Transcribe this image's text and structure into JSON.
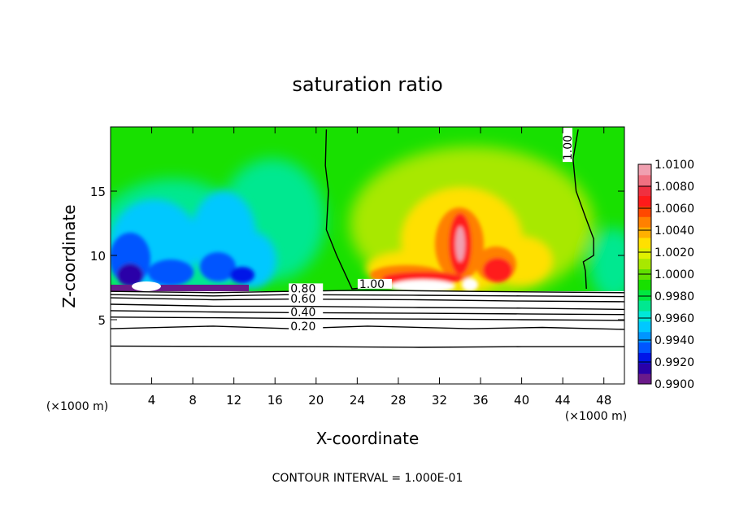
{
  "chart_data": {
    "type": "heatmap",
    "title": "saturation ratio",
    "xlabel": "X-coordinate",
    "ylabel": "Z-coordinate",
    "x_unit_left": "(×1000 m)",
    "x_unit_right": "(×1000 m)",
    "footer": "CONTOUR INTERVAL = 1.000E-01",
    "xlim": [
      0,
      50
    ],
    "ylim": [
      0,
      20
    ],
    "x_ticks": [
      4,
      8,
      12,
      16,
      20,
      24,
      28,
      32,
      36,
      40,
      44,
      48
    ],
    "x_tick_labels": [
      "4",
      "8",
      "12",
      "16",
      "20",
      "24",
      "28",
      "32",
      "36",
      "40",
      "44",
      "48"
    ],
    "y_ticks": [
      5,
      10,
      15
    ],
    "y_tick_labels": [
      "5",
      "10",
      "15"
    ],
    "cloud_base_height": 7.3,
    "colorbar": {
      "min": 0.99,
      "max": 1.01,
      "tick_labels": [
        "1.0100",
        "1.0080",
        "1.0060",
        "1.0040",
        "1.0020",
        "1.0000",
        "0.9980",
        "0.9960",
        "0.9940",
        "0.9920",
        "0.9900"
      ],
      "colors": [
        "#6a1a8a",
        "#2a00a8",
        "#0015e8",
        "#0055ff",
        "#0095ff",
        "#00c8ff",
        "#00e8d8",
        "#00e890",
        "#00e840",
        "#18e000",
        "#60e000",
        "#a8e800",
        "#e0f000",
        "#ffe000",
        "#ffb000",
        "#ff8000",
        "#ff4800",
        "#ff1a1a",
        "#f03040",
        "#f07080",
        "#f0a0b0"
      ]
    },
    "contour_lines": [
      {
        "value": 1.0,
        "label": "1.00",
        "points": [
          [
            21.0,
            19.8
          ],
          [
            20.9,
            17.0
          ],
          [
            21.2,
            15.0
          ],
          [
            21.0,
            12.0
          ],
          [
            22.0,
            10.0
          ],
          [
            23.5,
            7.4
          ],
          [
            25.0,
            7.5
          ],
          [
            26.5,
            7.5
          ]
        ]
      },
      {
        "value": 1.0,
        "label": "1.00",
        "points": [
          [
            45.5,
            19.8
          ],
          [
            45.0,
            17.5
          ],
          [
            45.3,
            15.0
          ],
          [
            46.2,
            13.0
          ],
          [
            47.0,
            11.3
          ],
          [
            47.0,
            10.0
          ],
          [
            46.0,
            9.5
          ],
          [
            46.2,
            8.8
          ],
          [
            46.3,
            7.4
          ]
        ]
      },
      {
        "value": 0.8,
        "label": "0.80",
        "points": [
          [
            0,
            7.2
          ],
          [
            10,
            7.1
          ],
          [
            17.5,
            7.2
          ],
          [
            25,
            7.3
          ],
          [
            35,
            7.2
          ],
          [
            50,
            7.1
          ]
        ]
      },
      {
        "value": 0.7,
        "label": "",
        "points": [
          [
            0,
            6.95
          ],
          [
            10,
            6.85
          ],
          [
            17.5,
            6.95
          ],
          [
            30,
            6.9
          ],
          [
            40,
            6.85
          ],
          [
            50,
            6.8
          ]
        ]
      },
      {
        "value": 0.6,
        "label": "0.60",
        "points": [
          [
            0,
            6.7
          ],
          [
            10,
            6.55
          ],
          [
            17.5,
            6.6
          ],
          [
            30,
            6.55
          ],
          [
            40,
            6.45
          ],
          [
            50,
            6.4
          ]
        ]
      },
      {
        "value": 0.5,
        "label": "",
        "points": [
          [
            0,
            6.2
          ],
          [
            10,
            6.05
          ],
          [
            17.5,
            6.05
          ],
          [
            30,
            5.95
          ],
          [
            40,
            5.9
          ],
          [
            50,
            5.8
          ]
        ]
      },
      {
        "value": 0.4,
        "label": "0.40",
        "points": [
          [
            0,
            5.7
          ],
          [
            10,
            5.6
          ],
          [
            17.5,
            5.55
          ],
          [
            30,
            5.5
          ],
          [
            40,
            5.45
          ],
          [
            50,
            5.4
          ]
        ]
      },
      {
        "value": 0.3,
        "label": "",
        "points": [
          [
            0,
            5.2
          ],
          [
            10,
            5.15
          ],
          [
            17.5,
            5.1
          ],
          [
            30,
            5.05
          ],
          [
            40,
            5.0
          ],
          [
            50,
            4.95
          ]
        ]
      },
      {
        "value": 0.2,
        "label": "0.20",
        "points": [
          [
            0,
            4.3
          ],
          [
            10,
            4.5
          ],
          [
            17.5,
            4.3
          ],
          [
            25,
            4.5
          ],
          [
            35,
            4.3
          ],
          [
            42,
            4.4
          ],
          [
            50,
            4.25
          ]
        ]
      },
      {
        "value": 0.1,
        "label": "",
        "points": [
          [
            0,
            2.95
          ],
          [
            20,
            2.9
          ],
          [
            30,
            2.85
          ],
          [
            40,
            2.9
          ],
          [
            50,
            2.9
          ]
        ]
      }
    ],
    "grid": false,
    "legend_position": "right colorbar"
  }
}
